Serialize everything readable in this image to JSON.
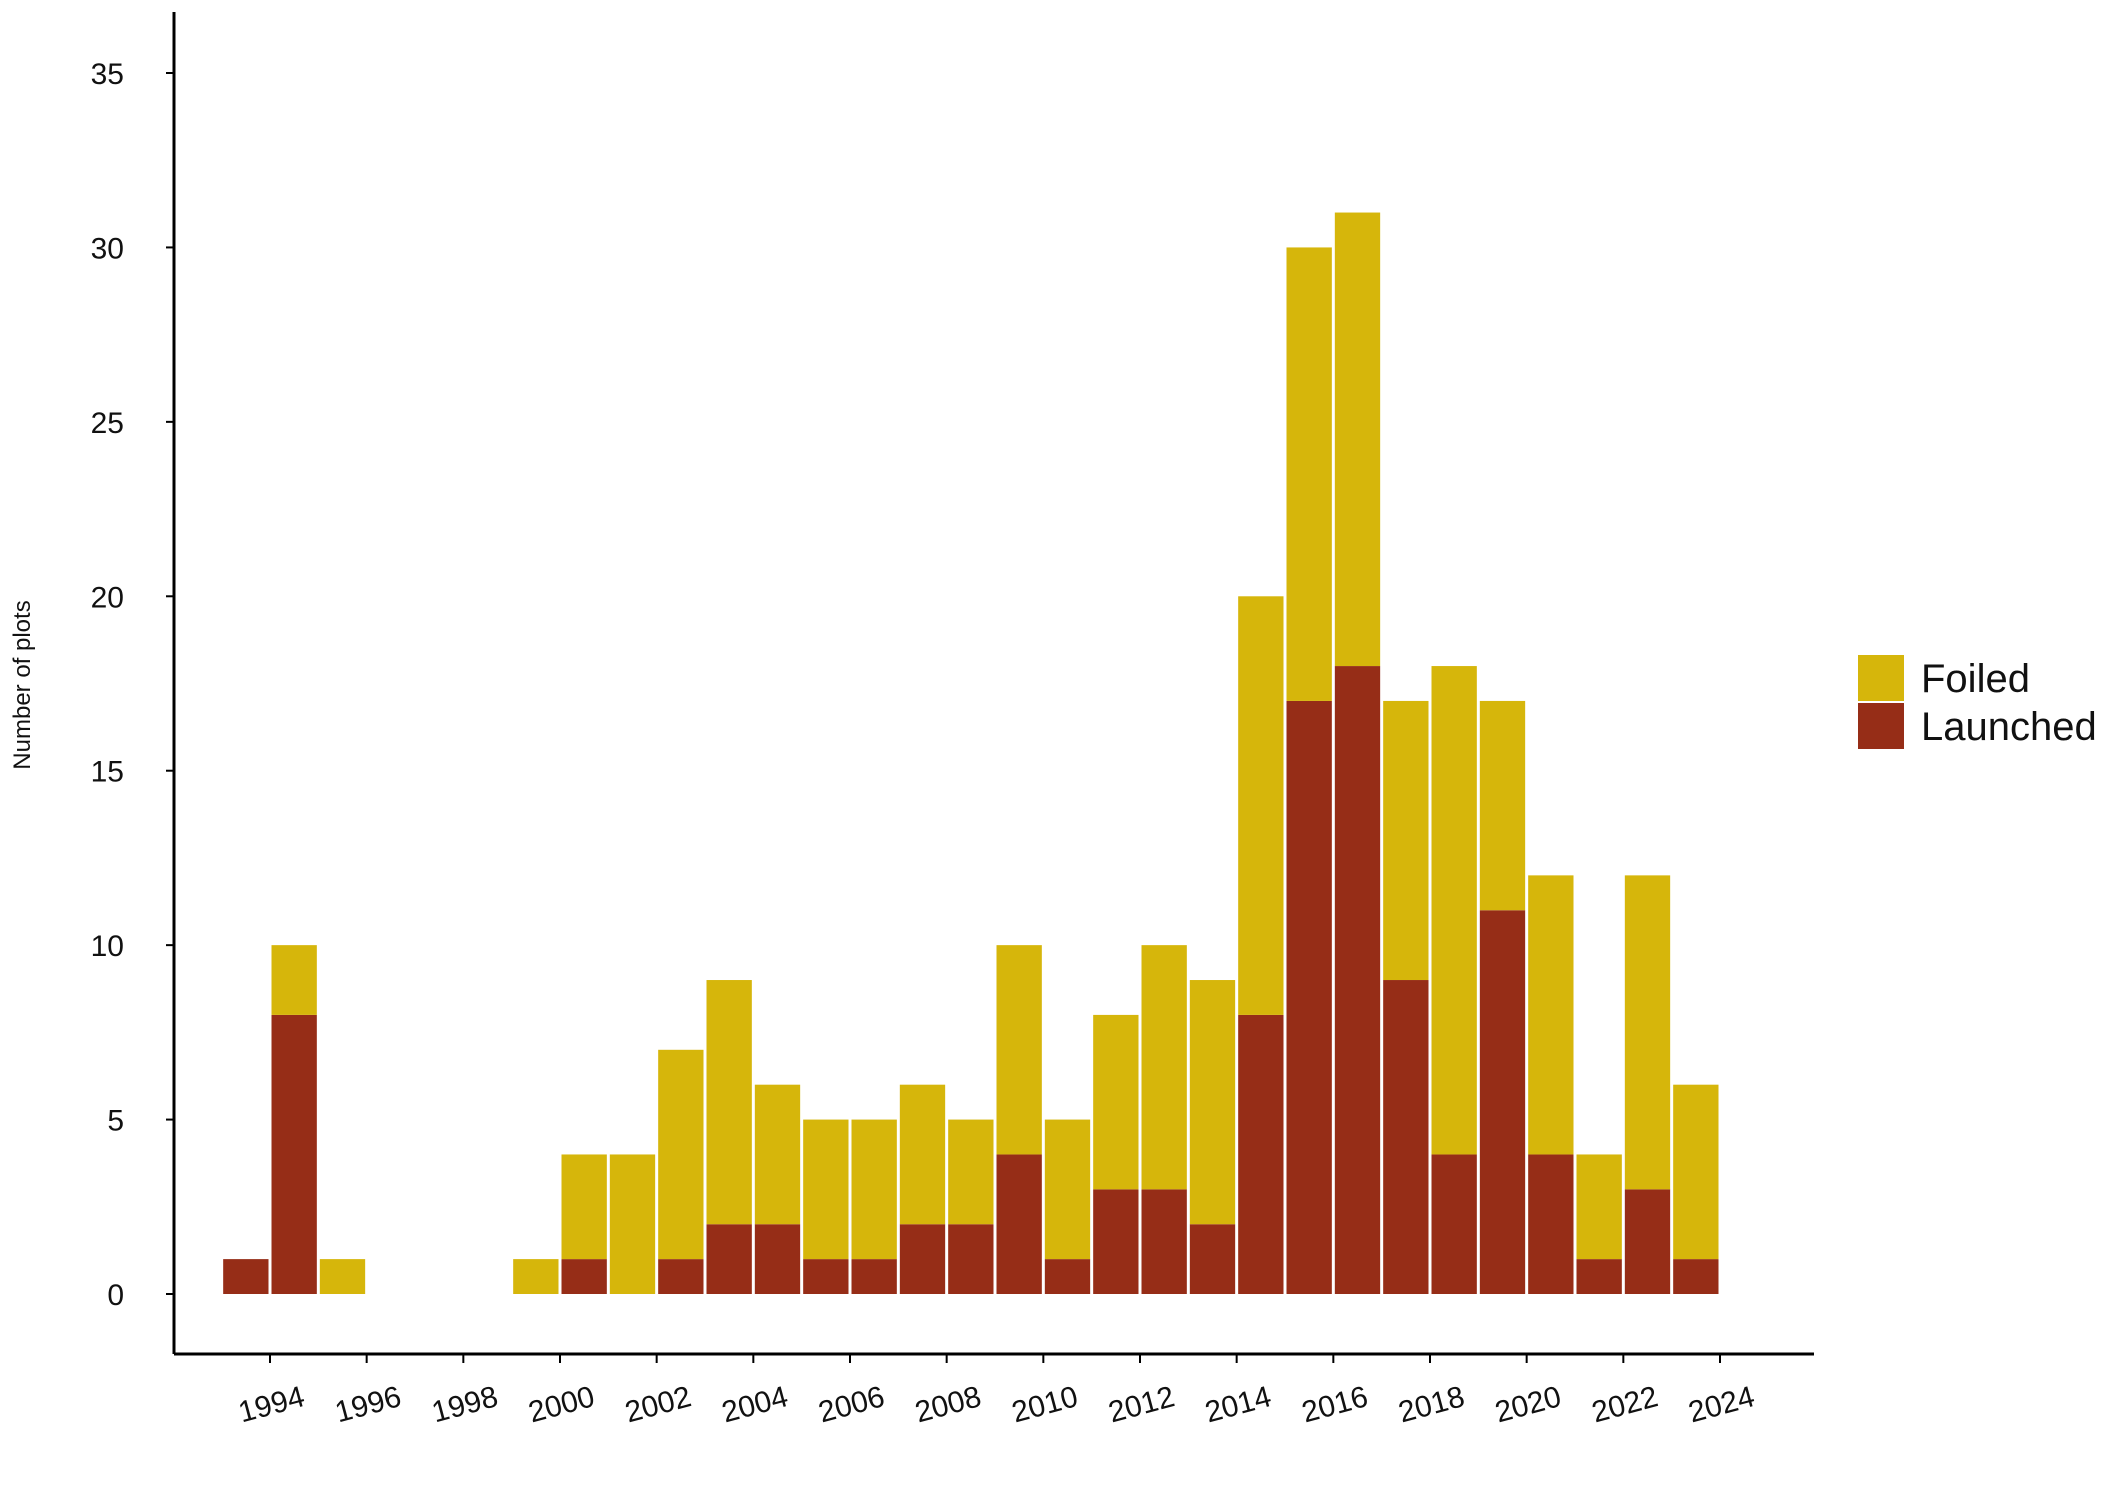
{
  "chart_data": {
    "type": "bar",
    "stacked": true,
    "title": "",
    "xlabel": "",
    "ylabel": "Number of plots",
    "ylim": [
      -1.7,
      36.7
    ],
    "yticks": [
      0,
      5,
      10,
      15,
      20,
      25,
      30,
      35
    ],
    "xtick_labels": [
      "1994",
      "1996",
      "1998",
      "2000",
      "2002",
      "2004",
      "2006",
      "2008",
      "2010",
      "2012",
      "2014",
      "2016",
      "2018",
      "2020",
      "2022",
      "2024"
    ],
    "xtick_values": [
      1994,
      1996,
      1998,
      2000,
      2002,
      2004,
      2006,
      2008,
      2010,
      2012,
      2014,
      2016,
      2018,
      2020,
      2022,
      2024
    ],
    "grid": false,
    "legend_position": "right",
    "x": [
      1993.5,
      1994.5,
      1995.5,
      1996.5,
      1997.5,
      1998.5,
      1999.5,
      2000.5,
      2001.5,
      2002.5,
      2003.5,
      2004.5,
      2005.5,
      2006.5,
      2007.5,
      2008.5,
      2009.5,
      2010.5,
      2011.5,
      2012.5,
      2013.5,
      2014.5,
      2015.5,
      2016.5,
      2017.5,
      2018.5,
      2019.5,
      2020.5,
      2021.5,
      2022.5,
      2023.5
    ],
    "series": [
      {
        "name": "Launched",
        "color": "#962D17",
        "values": [
          1,
          8,
          0,
          0,
          0,
          0,
          0,
          1,
          0,
          1,
          2,
          2,
          1,
          1,
          2,
          2,
          4,
          1,
          3,
          3,
          2,
          8,
          17,
          18,
          9,
          4,
          11,
          4,
          1,
          3,
          1
        ]
      },
      {
        "name": "Foiled",
        "color": "#D6B60B",
        "values": [
          0,
          2,
          1,
          0,
          0,
          0,
          1,
          3,
          4,
          6,
          7,
          4,
          4,
          4,
          4,
          3,
          6,
          4,
          5,
          7,
          7,
          12,
          13,
          13,
          8,
          14,
          6,
          8,
          3,
          9,
          5
        ]
      }
    ],
    "legend": [
      {
        "label": "Foiled",
        "color": "#D6B60B"
      },
      {
        "label": "Launched",
        "color": "#962D17"
      }
    ]
  }
}
